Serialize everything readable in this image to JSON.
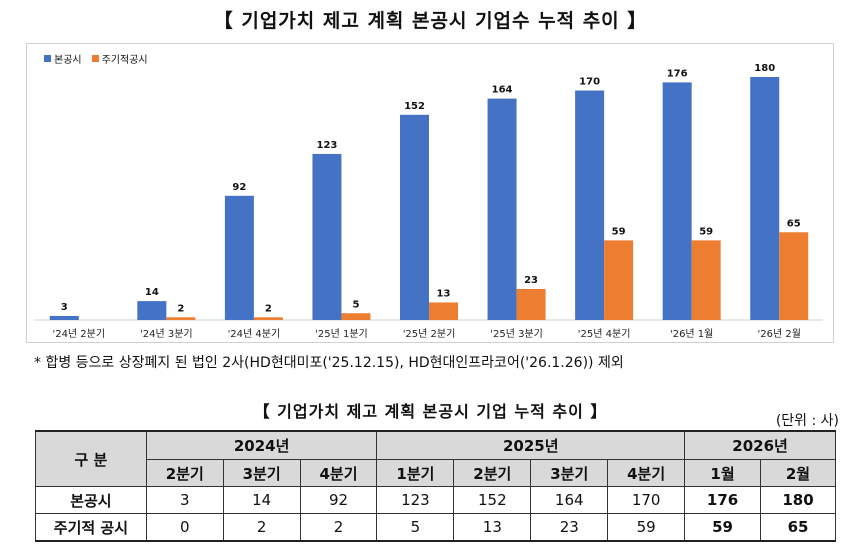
{
  "chart": {
    "title": "【 기업가치 제고 계획 본공시 기업수 누적 추이 】"
  },
  "chart_data": {
    "type": "bar",
    "categories": [
      "'24년 2분기",
      "'24년 3분기",
      "'24년 4분기",
      "'25년 1분기",
      "'25년 2분기",
      "'25년 3분기",
      "'25년 4분기",
      "'26년 1월",
      "'26년 2월"
    ],
    "series": [
      {
        "name": "본공시",
        "color": "#4472c4",
        "values": [
          3,
          14,
          92,
          123,
          152,
          164,
          170,
          176,
          180
        ]
      },
      {
        "name": "주기적공시",
        "color": "#ed7d31",
        "values": [
          null,
          2,
          2,
          5,
          13,
          23,
          59,
          59,
          65
        ]
      }
    ],
    "ylim": [
      0,
      180
    ],
    "grid": false,
    "legend": "top-left"
  },
  "footnote": "* 합병 등으로 상장폐지 된 법인 2사(HD현대미포('25.12.15), HD현대인프라코어('26.1.26)) 제외",
  "table": {
    "title": "【 기업가치 제고 계획 본공시 기업 누적 추이 】",
    "unit": "(단위 : 사)",
    "corner_label": "구 분",
    "years": [
      "2024년",
      "2025년",
      "2026년"
    ],
    "periods": [
      "2분기",
      "3분기",
      "4분기",
      "1분기",
      "2분기",
      "3분기",
      "4분기",
      "1월",
      "2월"
    ],
    "rows": [
      {
        "label": "본공시",
        "values": [
          "3",
          "14",
          "92",
          "123",
          "152",
          "164",
          "170",
          "176",
          "180"
        ]
      },
      {
        "label": "주기적 공시",
        "values": [
          "0",
          "2",
          "2",
          "5",
          "13",
          "23",
          "59",
          "59",
          "65"
        ]
      }
    ]
  }
}
